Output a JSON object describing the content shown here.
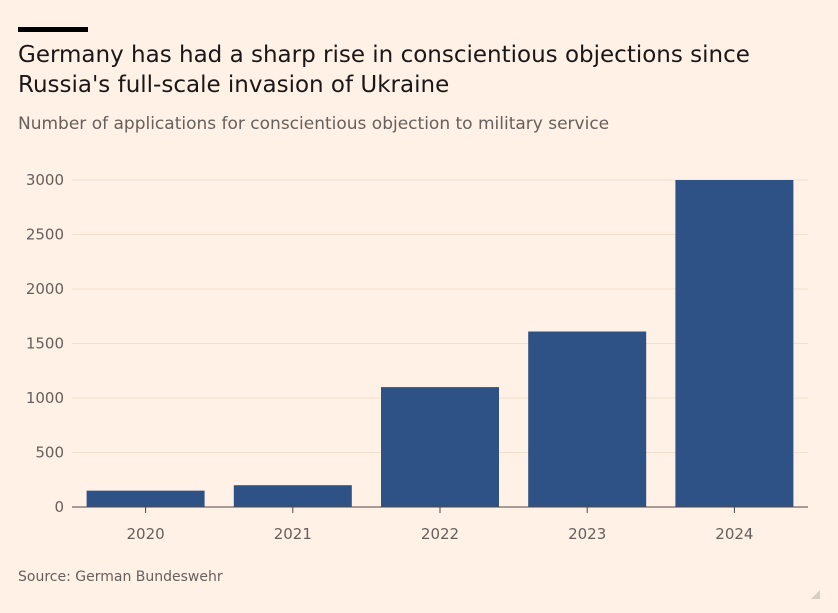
{
  "header": {
    "title_line1": "Germany has had a sharp rise in conscientious objections since",
    "title_line2": "Russia's full-scale invasion of Ukraine",
    "subtitle": "Number of applications for conscientious objection to military service"
  },
  "footer": {
    "source": "Source: German Bundeswehr"
  },
  "colors": {
    "background": "#fff1e5",
    "bar": "#2e5285",
    "gridline": "#f2dfce",
    "text": "#66605c",
    "title": "#1a1817"
  },
  "chart_data": {
    "type": "bar",
    "title": "Germany has had a sharp rise in conscientious objections since Russia's full-scale invasion of Ukraine",
    "subtitle": "Number of applications for conscientious objection to military service",
    "xlabel": "",
    "ylabel": "",
    "categories": [
      "2020",
      "2021",
      "2022",
      "2023",
      "2024"
    ],
    "values": [
      150,
      200,
      1100,
      1610,
      3000
    ],
    "ylim": [
      0,
      3000
    ],
    "yticks": [
      0,
      500,
      1000,
      1500,
      2000,
      2500,
      3000
    ],
    "grid": true,
    "legend": "none"
  }
}
